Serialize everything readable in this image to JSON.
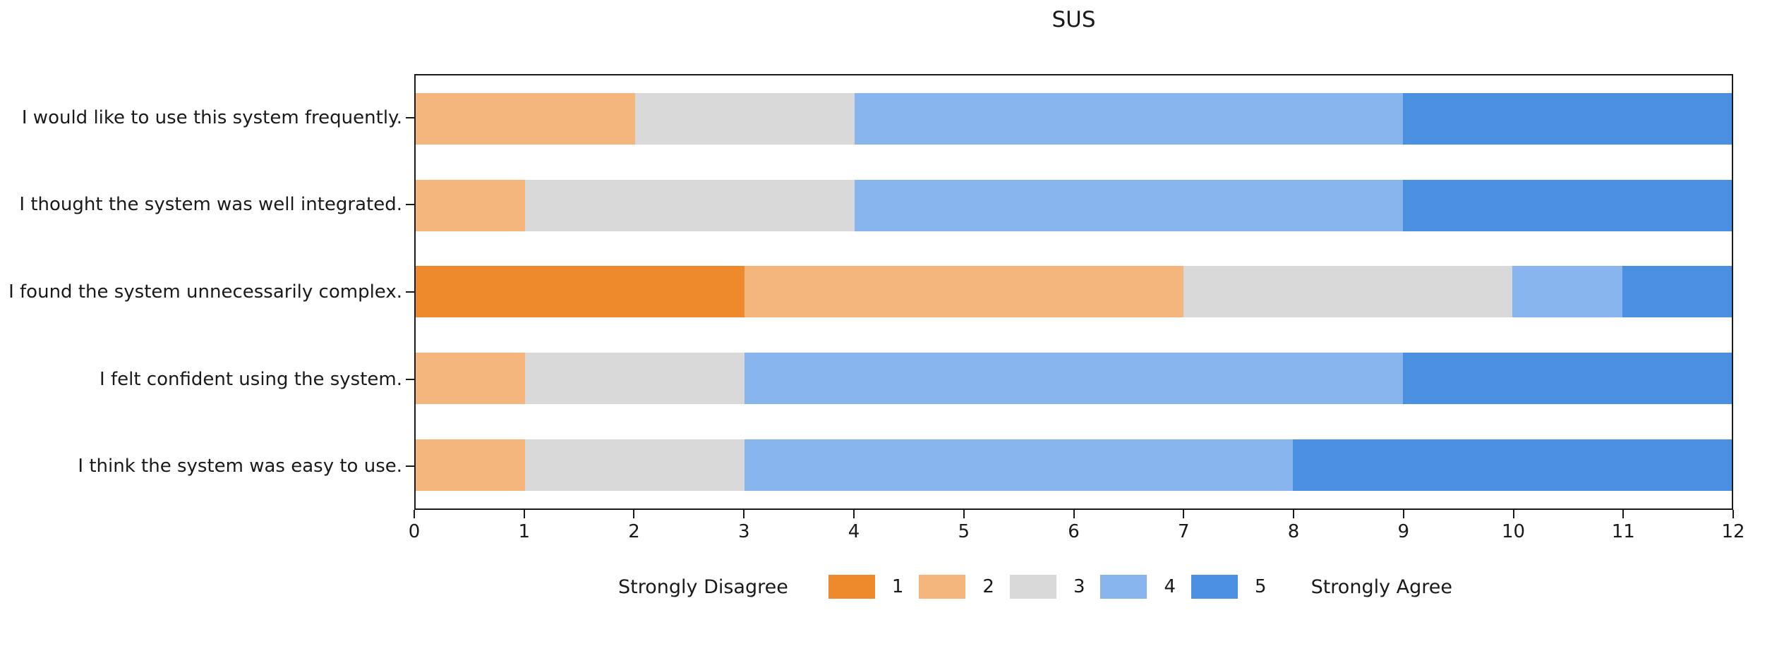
{
  "figure": {
    "title": "SUS"
  },
  "chart_data": {
    "type": "bar",
    "orientation": "horizontal_stacked",
    "title": "SUS",
    "categories": [
      "I would like to use this system frequently.",
      "I thought the system was well integrated.",
      "I found the system unnecessarily complex.",
      "I felt confident using the system.",
      "I think the system was easy to use."
    ],
    "series": [
      {
        "name": "1",
        "color": "#ef8a2c",
        "values": [
          0,
          0,
          3,
          0,
          0
        ]
      },
      {
        "name": "2",
        "color": "#f5b67d",
        "values": [
          2,
          1,
          4,
          1,
          1
        ]
      },
      {
        "name": "3",
        "color": "#d9d9d9",
        "values": [
          2,
          3,
          3,
          2,
          2
        ]
      },
      {
        "name": "4",
        "color": "#88b5ee",
        "values": [
          5,
          5,
          1,
          6,
          5
        ]
      },
      {
        "name": "5",
        "color": "#4a8fe0",
        "values": [
          3,
          3,
          1,
          3,
          4
        ]
      }
    ],
    "xlim": [
      0,
      12
    ],
    "xticks": [
      "0",
      "1",
      "2",
      "3",
      "4",
      "5",
      "6",
      "7",
      "8",
      "9",
      "10",
      "11",
      "12"
    ],
    "grid": false,
    "legend": {
      "position": "bottom-center",
      "left_label": "Strongly Disagree",
      "right_label": "Strongly Agree",
      "entries": [
        "1",
        "2",
        "3",
        "4",
        "5"
      ]
    },
    "axis_color": "#1a1a1a",
    "background_color": "#ffffff"
  }
}
